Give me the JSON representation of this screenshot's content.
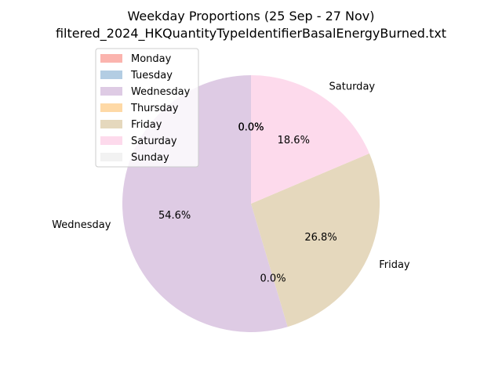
{
  "chart_data": {
    "type": "pie",
    "title": "Weekday Proportions (25 Sep - 27 Nov)",
    "subtitle": "filtered_2024_HKQuantityTypeIdentifierBasalEnergyBurned.txt",
    "categories": [
      "Monday",
      "Tuesday",
      "Wednesday",
      "Thursday",
      "Friday",
      "Saturday",
      "Sunday"
    ],
    "values": [
      0.0,
      0.0,
      54.6,
      0.0,
      26.8,
      18.6,
      0.0
    ],
    "percent_labels": [
      "0.0%",
      "0.0%",
      "54.6%",
      "0.0%",
      "26.8%",
      "18.6%",
      "0.0%"
    ],
    "colors": [
      "#fbb4ae",
      "#b3cde3",
      "#decbe4",
      "#fed9a6",
      "#e5d8bd",
      "#fddaec",
      "#f2f2f2"
    ],
    "start_angle_deg": 90,
    "direction": "counterclockwise",
    "legend_placement": "upper-left"
  }
}
